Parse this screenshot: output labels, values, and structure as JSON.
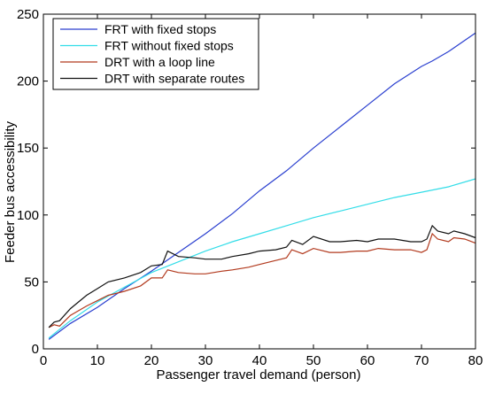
{
  "chart_data": {
    "type": "line",
    "title": "",
    "xlabel": "Passenger travel demand (person)",
    "ylabel": "Feeder bus accessibility",
    "xlim": [
      0,
      80
    ],
    "ylim": [
      0,
      250
    ],
    "xticks": [
      0,
      10,
      20,
      30,
      40,
      50,
      60,
      70,
      80
    ],
    "yticks": [
      0,
      50,
      100,
      150,
      200,
      250
    ],
    "grid": false,
    "legend_position": "top-left",
    "series": [
      {
        "name": "FRT with fixed stops",
        "color": "#2a3fcf",
        "x": [
          1,
          5,
          10,
          15,
          20,
          25,
          30,
          35,
          40,
          45,
          50,
          55,
          60,
          65,
          70,
          72,
          75,
          80
        ],
        "y": [
          7,
          19,
          31,
          45,
          58,
          72,
          86,
          101,
          118,
          133,
          150,
          166,
          182,
          198,
          211,
          215,
          222,
          236
        ]
      },
      {
        "name": "FRT without fixed stops",
        "color": "#33dde8",
        "x": [
          1,
          5,
          10,
          15,
          20,
          25,
          30,
          35,
          40,
          45,
          50,
          55,
          60,
          65,
          70,
          75,
          80
        ],
        "y": [
          8,
          21,
          35,
          46,
          57,
          65,
          73,
          80,
          86,
          92,
          98,
          103,
          108,
          113,
          117,
          121,
          127
        ]
      },
      {
        "name": "DRT with a loop line",
        "color": "#b23a1e",
        "x": [
          1,
          2,
          3,
          5,
          8,
          10,
          12,
          15,
          18,
          20,
          22,
          23,
          25,
          28,
          30,
          33,
          35,
          38,
          40,
          43,
          45,
          46,
          48,
          50,
          53,
          55,
          58,
          60,
          62,
          65,
          68,
          70,
          71,
          72,
          73,
          75,
          76,
          78,
          80
        ],
        "y": [
          16,
          18,
          17,
          25,
          32,
          36,
          40,
          43,
          47,
          53,
          53,
          59,
          57,
          56,
          56,
          58,
          59,
          61,
          63,
          66,
          68,
          74,
          71,
          75,
          72,
          72,
          73,
          73,
          75,
          74,
          74,
          72,
          74,
          86,
          82,
          80,
          83,
          82,
          79
        ]
      },
      {
        "name": "DRT with separate routes",
        "color": "#111111",
        "x": [
          1,
          2,
          3,
          5,
          8,
          10,
          12,
          15,
          18,
          20,
          22,
          23,
          25,
          28,
          30,
          33,
          35,
          38,
          40,
          43,
          45,
          46,
          48,
          50,
          53,
          55,
          58,
          60,
          62,
          65,
          68,
          70,
          71,
          72,
          73,
          75,
          76,
          78,
          80
        ],
        "y": [
          16,
          20,
          21,
          30,
          40,
          45,
          50,
          53,
          57,
          62,
          63,
          73,
          69,
          68,
          67,
          67,
          69,
          71,
          73,
          74,
          76,
          81,
          78,
          84,
          80,
          80,
          81,
          80,
          82,
          82,
          80,
          80,
          82,
          92,
          88,
          86,
          88,
          86,
          83
        ]
      }
    ]
  }
}
